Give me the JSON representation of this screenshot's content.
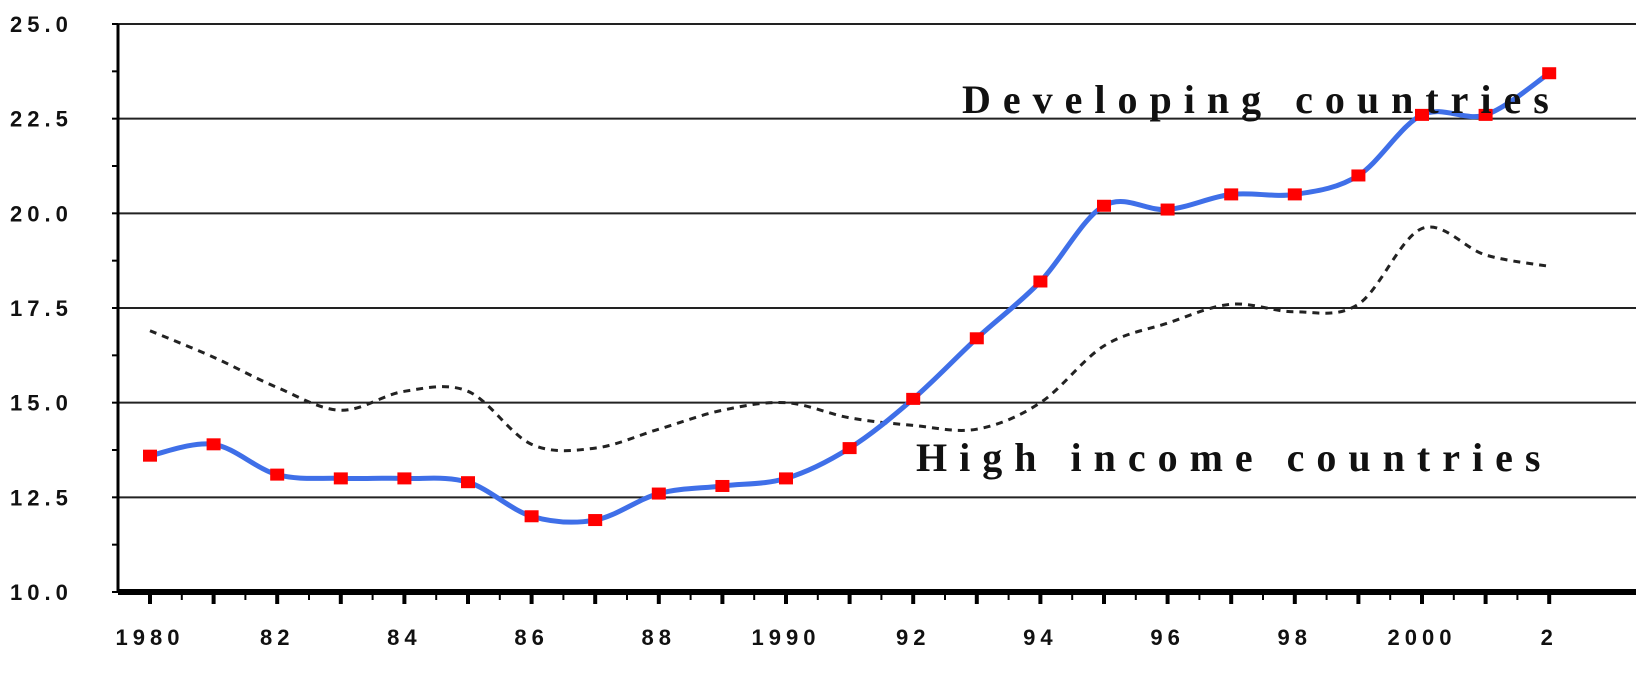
{
  "chart_data": {
    "type": "line",
    "ylim": [
      10.0,
      25.0
    ],
    "y_ticks": [
      "10.0",
      "12.5",
      "15.0",
      "17.5",
      "20.0",
      "22.5",
      "25.0"
    ],
    "x_ticks": [
      "1980",
      "82",
      "84",
      "86",
      "88",
      "1990",
      "92",
      "94",
      "96",
      "98",
      "2000",
      "2"
    ],
    "grid": true,
    "series": [
      {
        "name": "Developing countries",
        "color": "#3f6fe8",
        "marker_color": "#ff0000",
        "style": "solid",
        "x": [
          1980,
          1981,
          1982,
          1983,
          1984,
          1985,
          1986,
          1987,
          1988,
          1989,
          1990,
          1991,
          1992,
          1993,
          1994,
          1995,
          1996,
          1997,
          1998,
          1999,
          2000,
          2001,
          2002
        ],
        "values": [
          13.6,
          13.9,
          13.1,
          13.0,
          13.0,
          12.9,
          12.0,
          11.9,
          12.6,
          12.8,
          13.0,
          13.8,
          15.1,
          16.7,
          18.2,
          20.2,
          20.1,
          20.5,
          20.5,
          21.0,
          22.6,
          22.6,
          23.7
        ]
      },
      {
        "name": "High income countries",
        "color": "#222222",
        "style": "dashed",
        "x": [
          1980,
          1981,
          1982,
          1983,
          1984,
          1985,
          1986,
          1987,
          1988,
          1989,
          1990,
          1991,
          1992,
          1993,
          1994,
          1995,
          1996,
          1997,
          1998,
          1999,
          2000,
          2001,
          2002
        ],
        "values": [
          16.9,
          16.2,
          15.4,
          14.8,
          15.3,
          15.3,
          13.9,
          13.8,
          14.3,
          14.8,
          15.0,
          14.6,
          14.4,
          14.3,
          15.0,
          16.5,
          17.1,
          17.6,
          17.4,
          17.6,
          19.6,
          18.9,
          18.6
        ]
      }
    ]
  }
}
